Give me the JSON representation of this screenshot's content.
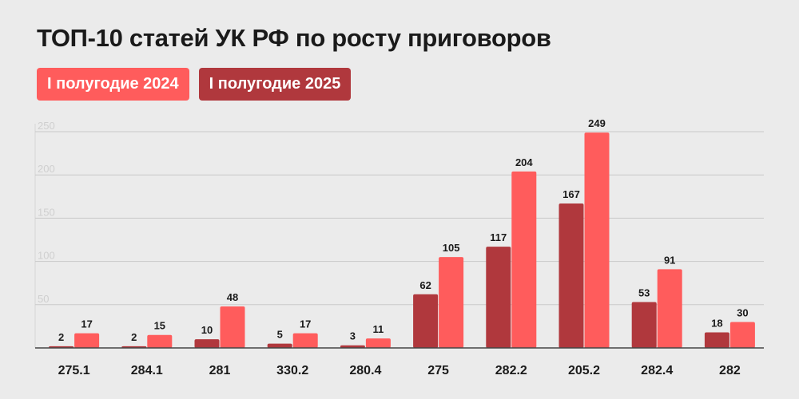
{
  "title": "ТОП-10 статей УК РФ по росту приговоров",
  "legend": [
    {
      "label": "I полугодие 2024",
      "color": "#ff5c5c"
    },
    {
      "label": "I полугодие 2025",
      "color": "#b0383d"
    }
  ],
  "chart_data": {
    "type": "bar",
    "title": "ТОП-10 статей УК РФ по росту приговоров",
    "xlabel": "",
    "ylabel": "",
    "ylim": [
      0,
      250
    ],
    "yticks": [
      50,
      100,
      150,
      200,
      250
    ],
    "grid": true,
    "legend_position": "top-left",
    "categories": [
      "275.1",
      "284.1",
      "281",
      "330.2",
      "280.4",
      "275",
      "282.2",
      "205.2",
      "282.4",
      "282"
    ],
    "series": [
      {
        "name": "I полугодие 2025",
        "color": "#b0383d",
        "values": [
          2,
          2,
          10,
          5,
          3,
          62,
          117,
          167,
          53,
          18
        ]
      },
      {
        "name": "I полугодие 2024",
        "color": "#ff5c5c",
        "values": [
          17,
          15,
          48,
          17,
          11,
          105,
          204,
          249,
          91,
          30
        ]
      }
    ]
  }
}
